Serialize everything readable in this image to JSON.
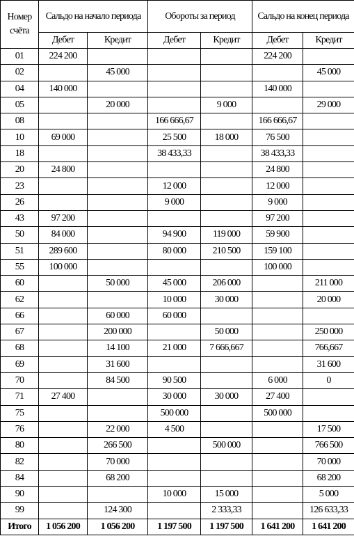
{
  "table": {
    "header": {
      "account": "Номер счёта",
      "groups": [
        "Сальдо на начало периода",
        "Обороты за период",
        "Сальдо на конец периода"
      ],
      "sub": [
        "Дебет",
        "Кредит",
        "Дебет",
        "Кредит",
        "Дебет",
        "Кредит"
      ]
    },
    "rows": [
      [
        "01",
        "224 200",
        null,
        null,
        null,
        "224 200",
        null
      ],
      [
        "02",
        null,
        "45 000",
        null,
        null,
        null,
        "45 000"
      ],
      [
        "04",
        "140 000",
        null,
        null,
        null,
        "140 000",
        null
      ],
      [
        "05",
        null,
        "20 000",
        null,
        "9 000",
        null,
        "29 000"
      ],
      [
        "08",
        null,
        null,
        "166 666,67",
        null,
        "166 666,67",
        null
      ],
      [
        "10",
        "69 000",
        null,
        "25 500",
        "18 000",
        "76 500",
        null
      ],
      [
        "18",
        null,
        null,
        "38 433,33",
        null,
        "38 433,33",
        null
      ],
      [
        "20",
        "24 800",
        null,
        null,
        null,
        "24 800",
        null
      ],
      [
        "23",
        null,
        null,
        "12 000",
        null,
        "12 000",
        null
      ],
      [
        "26",
        null,
        null,
        "9 000",
        null,
        "9 000",
        null
      ],
      [
        "43",
        "97 200",
        null,
        null,
        null,
        "97 200",
        null
      ],
      [
        "50",
        "84 000",
        null,
        "94 900",
        "119 000",
        "59 900",
        null
      ],
      [
        "51",
        "289 600",
        null,
        "80 000",
        "210 500",
        "159 100",
        null
      ],
      [
        "55",
        "100 000",
        null,
        null,
        null,
        "100 000",
        null
      ],
      [
        "60",
        null,
        "50 000",
        "45 000",
        "206 000",
        null,
        "211 000"
      ],
      [
        "62",
        null,
        null,
        "10 000",
        "30 000",
        null,
        "20 000"
      ],
      [
        "66",
        null,
        "60 000",
        "60 000",
        null,
        null,
        null
      ],
      [
        "67",
        null,
        "200 000",
        null,
        "50 000",
        null,
        "250 000"
      ],
      [
        "68",
        null,
        "14 100",
        "21 000",
        "7 666,667",
        null,
        "766,667"
      ],
      [
        "69",
        null,
        "31 600",
        null,
        null,
        null,
        "31 600"
      ],
      [
        "70",
        null,
        "84 500",
        "90 500",
        null,
        "6 000",
        "0"
      ],
      [
        "71",
        "27 400",
        null,
        "30 000",
        "30 000",
        "27 400",
        null
      ],
      [
        "75",
        null,
        null,
        "500 000",
        null,
        "500 000",
        null
      ],
      [
        "76",
        null,
        "22 000",
        "4 500",
        null,
        null,
        "17 500"
      ],
      [
        "80",
        null,
        "266 500",
        null,
        "500 000",
        null,
        "766 500"
      ],
      [
        "82",
        null,
        "70 000",
        null,
        null,
        null,
        "70 000"
      ],
      [
        "84",
        null,
        "68 200",
        null,
        null,
        null,
        "68 200"
      ],
      [
        "90",
        null,
        null,
        "10 000",
        "15 000",
        null,
        "5 000"
      ],
      [
        "99",
        null,
        "124 300",
        null,
        "2 333,33",
        null,
        "126 633,33"
      ],
      [
        "Итого",
        "1 056 200",
        "1 056 200",
        "1 197 500",
        "1 197 500",
        "1 641 200",
        "1 641 200"
      ]
    ]
  }
}
